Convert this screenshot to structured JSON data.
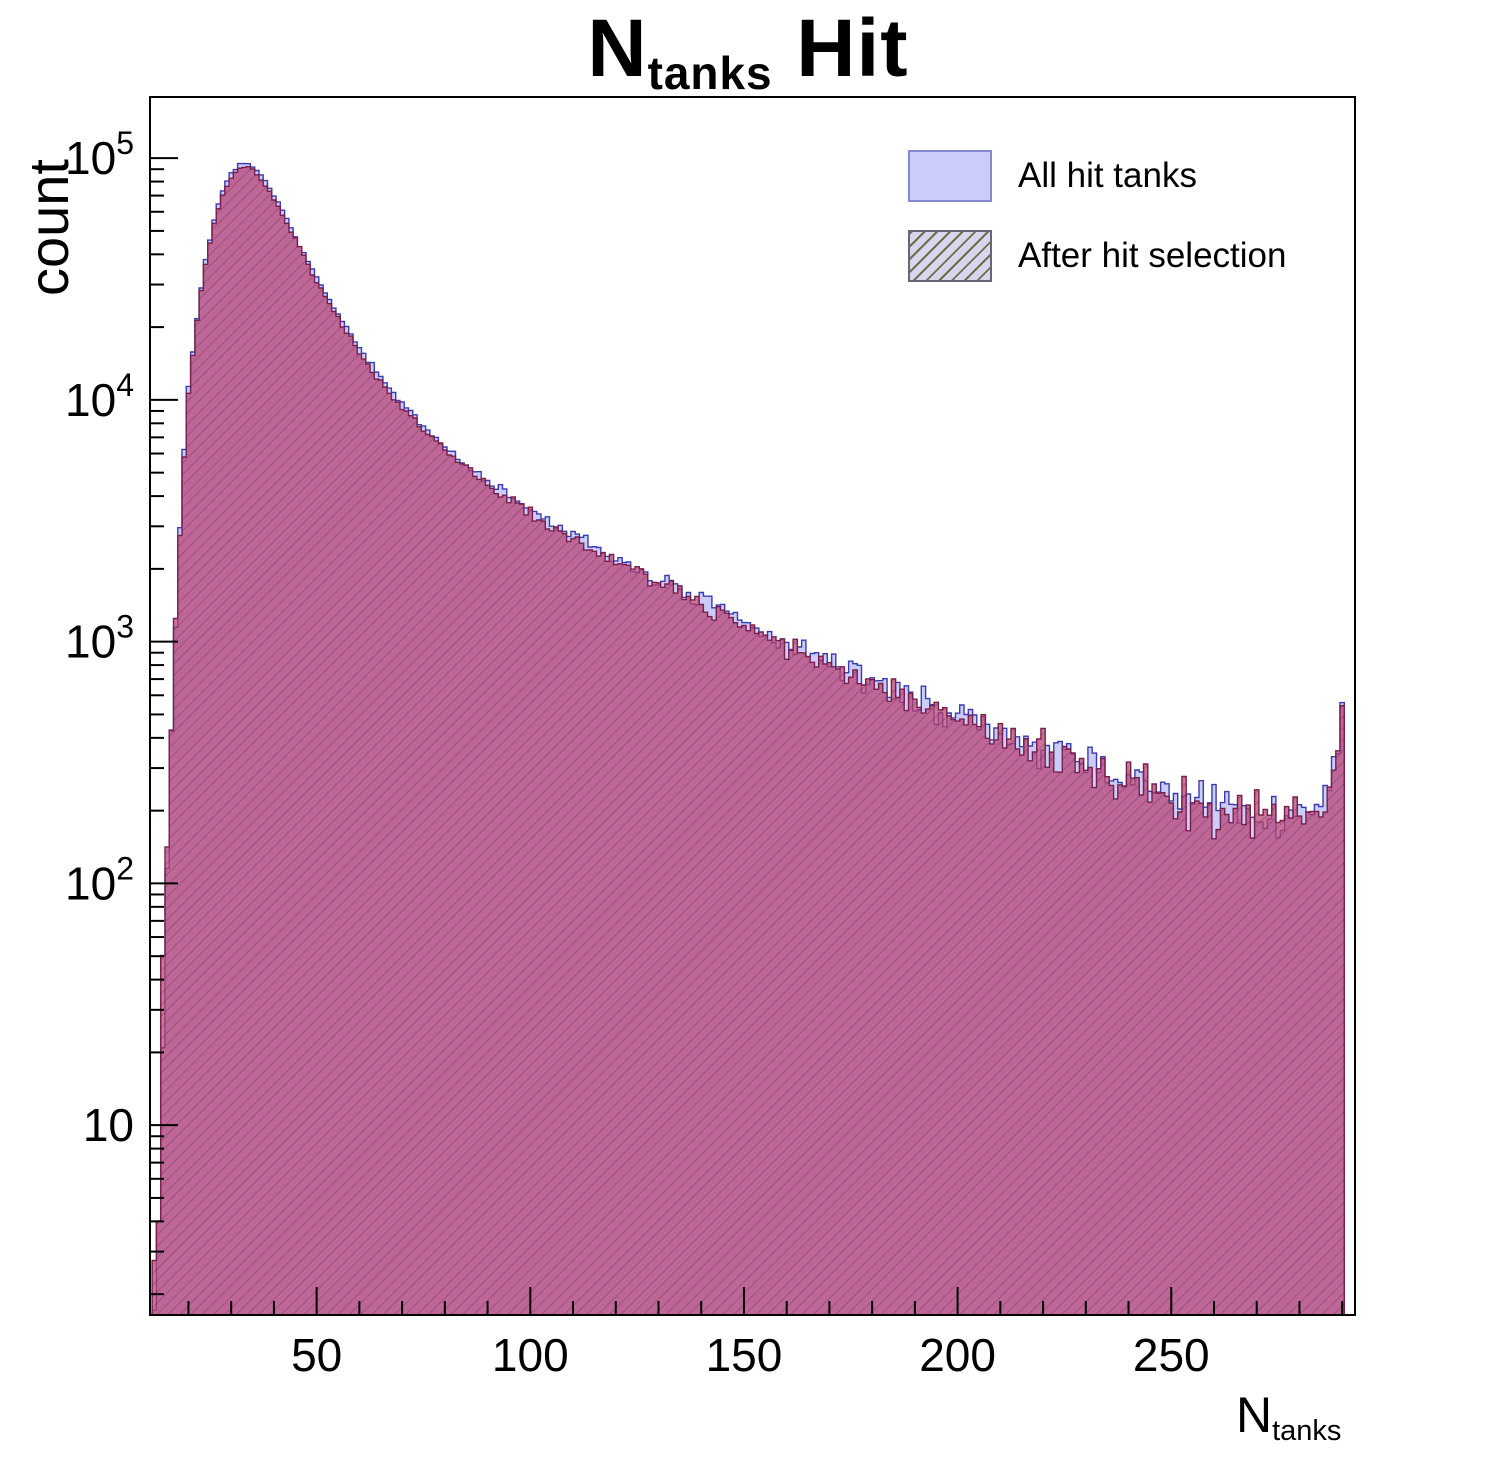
{
  "title": {
    "prefix": "N",
    "subscript": "tanks",
    "suffix": " Hit"
  },
  "y_axis": {
    "label": "count"
  },
  "x_axis": {
    "label_prefix": "N",
    "label_subscript": "tanks"
  },
  "legend": {
    "items": [
      {
        "label": "All hit tanks",
        "swatch": "solid-blue"
      },
      {
        "label": "After hit selection",
        "swatch": "hatched-red"
      }
    ]
  },
  "colors": {
    "frame": "#000000",
    "all_fill": "#ccccfa",
    "all_stroke": "#3b3bb0",
    "sel_fill": "rgba(187,68,119,0.75)",
    "sel_stroke": "#7a1f4d",
    "hatch_line": "rgba(50,38,24,0.28)"
  },
  "chart_data": {
    "type": "bar",
    "subtype": "overlaid-log-histograms",
    "title": "N_tanks Hit",
    "xlabel": "N_tanks",
    "ylabel": "count",
    "xlim": [
      11,
      293
    ],
    "ylim": [
      1.64,
      179000
    ],
    "bins": [
      12,
      290
    ],
    "bin_width": 1,
    "x_ticks": [
      50,
      100,
      150,
      200,
      250
    ],
    "x_minor_step": 10,
    "y_ticks": [
      10,
      100,
      1000,
      10000,
      100000
    ],
    "y_scale": "log",
    "grid": false,
    "legend_position": "top-right",
    "noise": {
      "coef": 1.7,
      "max": 0.35
    },
    "series": [
      {
        "name": "All hit tanks",
        "seed": 7,
        "scale": 1.0,
        "anchors": [
          [
            12,
            2
          ],
          [
            13,
            5
          ],
          [
            14,
            25
          ],
          [
            15,
            120
          ],
          [
            16,
            420
          ],
          [
            17,
            1200
          ],
          [
            18,
            3000
          ],
          [
            19,
            6200
          ],
          [
            20,
            11000
          ],
          [
            21,
            16000
          ],
          [
            22,
            22000
          ],
          [
            24,
            38000
          ],
          [
            26,
            56000
          ],
          [
            28,
            73000
          ],
          [
            30,
            86000
          ],
          [
            32,
            94000
          ],
          [
            34,
            95000
          ],
          [
            36,
            89000
          ],
          [
            38,
            80000
          ],
          [
            40,
            70000
          ],
          [
            43,
            56000
          ],
          [
            46,
            44000
          ],
          [
            50,
            32000
          ],
          [
            54,
            24000
          ],
          [
            58,
            18500
          ],
          [
            62,
            14500
          ],
          [
            66,
            11700
          ],
          [
            70,
            9600
          ],
          [
            75,
            7800
          ],
          [
            80,
            6400
          ],
          [
            85,
            5400
          ],
          [
            90,
            4600
          ],
          [
            95,
            4000
          ],
          [
            100,
            3500
          ],
          [
            105,
            3100
          ],
          [
            110,
            2750
          ],
          [
            115,
            2450
          ],
          [
            120,
            2200
          ],
          [
            125,
            2000
          ],
          [
            130,
            1800
          ],
          [
            135,
            1620
          ],
          [
            140,
            1470
          ],
          [
            145,
            1330
          ],
          [
            150,
            1200
          ],
          [
            155,
            1080
          ],
          [
            160,
            980
          ],
          [
            165,
            900
          ],
          [
            170,
            820
          ],
          [
            175,
            750
          ],
          [
            180,
            690
          ],
          [
            185,
            630
          ],
          [
            190,
            580
          ],
          [
            195,
            535
          ],
          [
            200,
            495
          ],
          [
            205,
            455
          ],
          [
            210,
            420
          ],
          [
            215,
            390
          ],
          [
            220,
            360
          ],
          [
            225,
            335
          ],
          [
            230,
            310
          ],
          [
            235,
            290
          ],
          [
            240,
            270
          ],
          [
            245,
            250
          ],
          [
            250,
            235
          ],
          [
            255,
            222
          ],
          [
            260,
            210
          ],
          [
            265,
            202
          ],
          [
            270,
            196
          ],
          [
            275,
            192
          ],
          [
            280,
            192
          ],
          [
            284,
            200
          ],
          [
            287,
            230
          ],
          [
            289,
            330
          ],
          [
            290,
            600
          ]
        ]
      },
      {
        "name": "After hit selection",
        "seed": 12345,
        "scale": 0.965
      }
    ]
  }
}
